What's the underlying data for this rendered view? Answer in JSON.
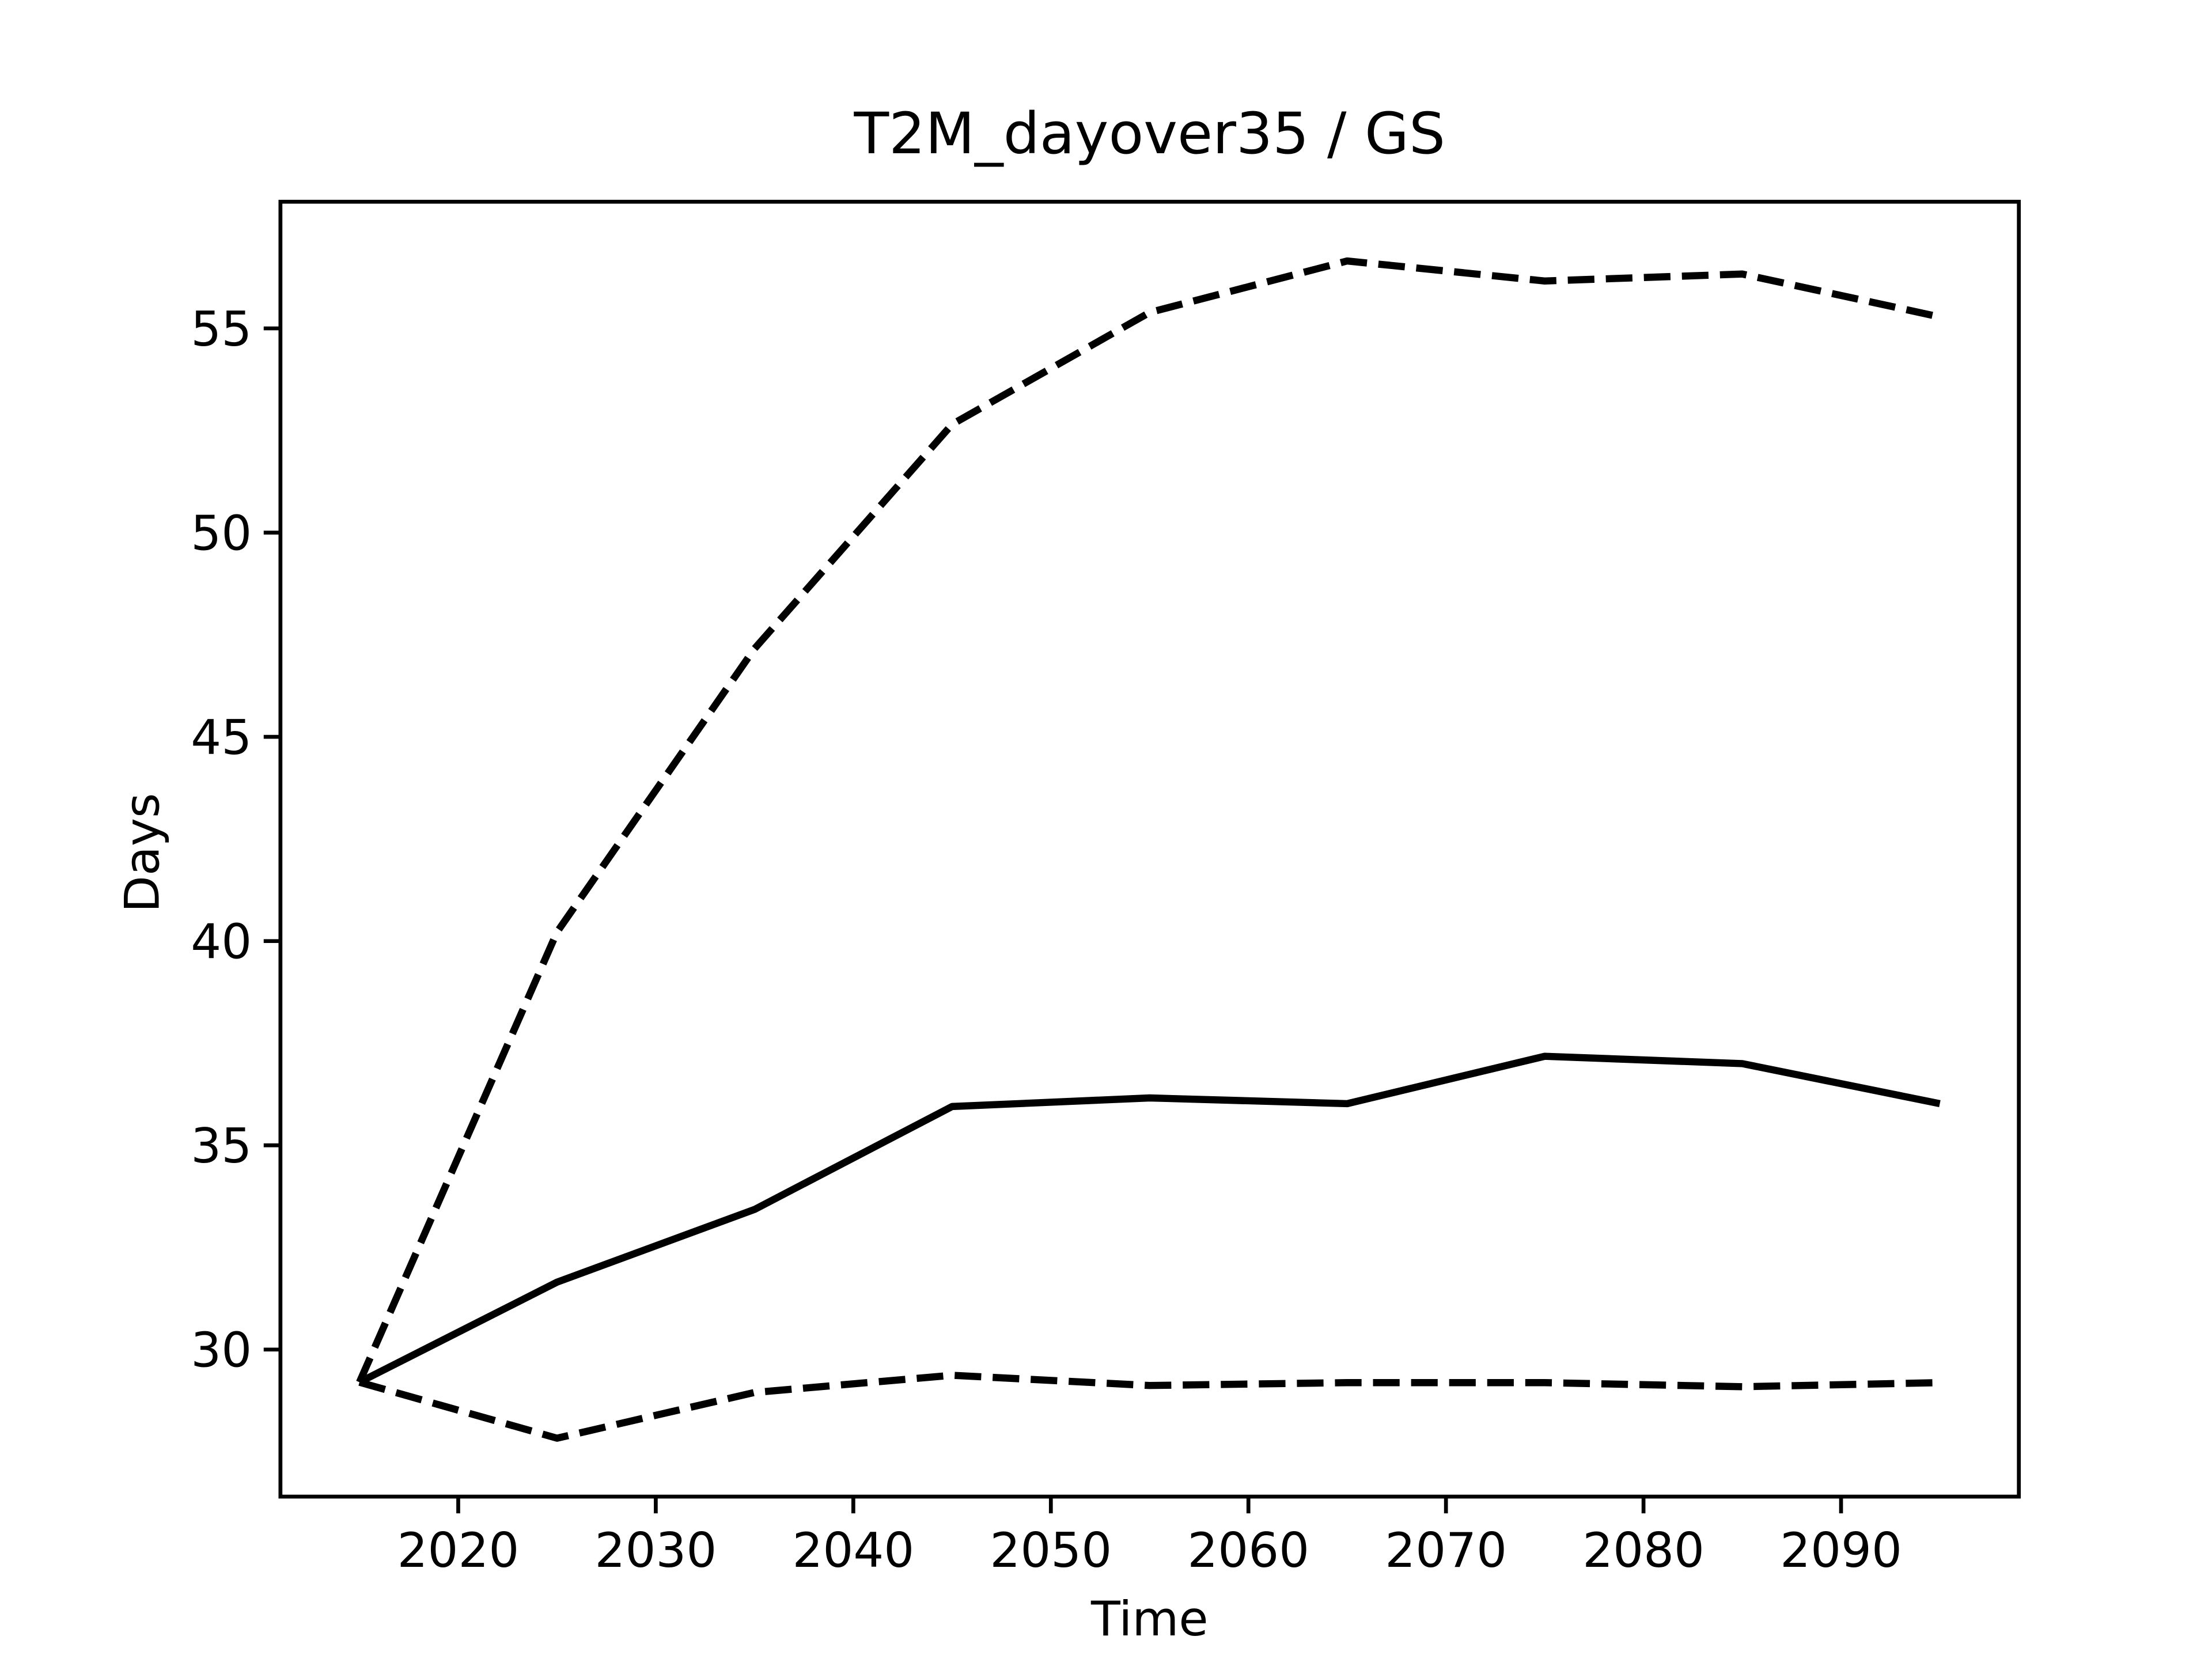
{
  "chart_data": {
    "type": "line",
    "title": "T2M_dayover35 / GS",
    "xlabel": "Time",
    "ylabel": "Days",
    "x": [
      2015,
      2025,
      2035,
      2045,
      2055,
      2065,
      2075,
      2085,
      2095
    ],
    "series": [
      {
        "color": "#000000",
        "linestyle": "solid",
        "values": [
          29.2,
          31.65,
          33.43,
          35.95,
          36.16,
          36.02,
          37.18,
          37.0,
          36.02
        ]
      },
      {
        "color": "#000000",
        "linestyle": "dashed",
        "values": [
          29.2,
          40.22,
          47.16,
          52.65,
          55.39,
          56.65,
          56.16,
          56.33,
          55.28
        ]
      },
      {
        "color": "#000000",
        "linestyle": "dashed",
        "values": [
          29.2,
          27.83,
          28.95,
          29.37,
          29.12,
          29.19,
          29.19,
          29.09,
          29.19
        ]
      }
    ],
    "xlim": [
      2011,
      2099
    ],
    "ylim": [
      26.4,
      58.1
    ],
    "xticks": [
      2020,
      2030,
      2040,
      2050,
      2060,
      2070,
      2080,
      2090
    ],
    "yticks": [
      30,
      35,
      40,
      45,
      50,
      55
    ],
    "grid": false
  }
}
